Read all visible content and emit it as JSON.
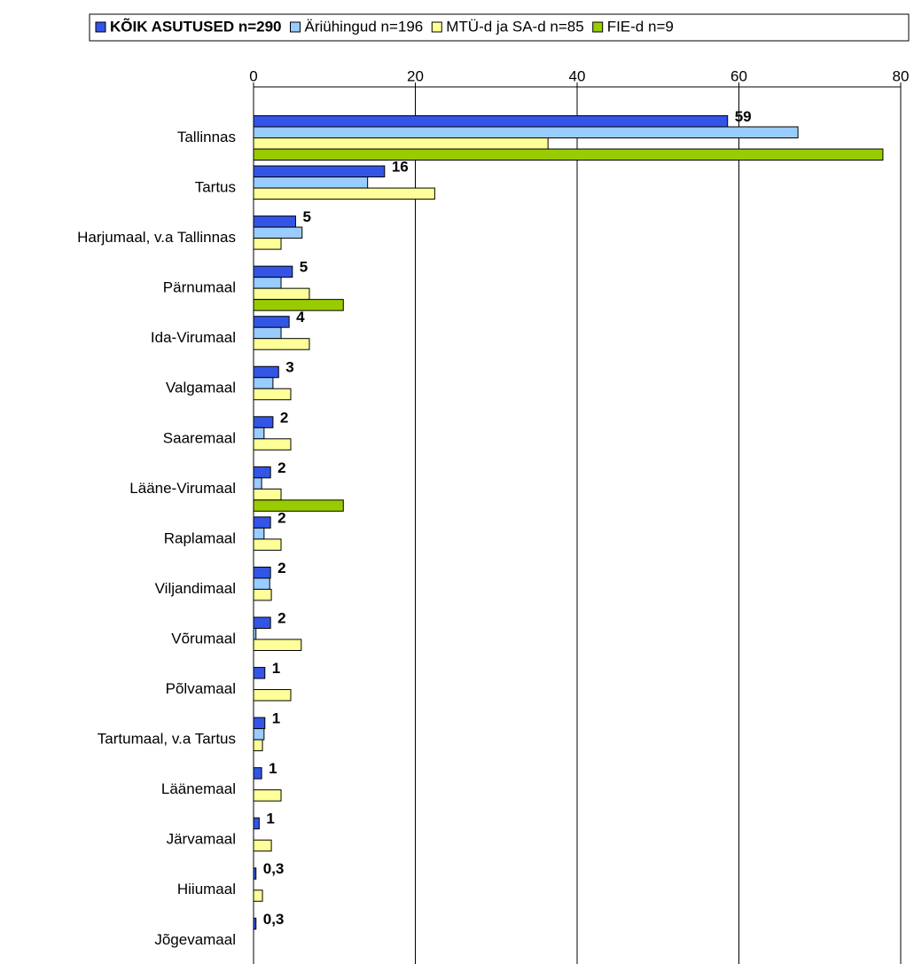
{
  "chart_data": {
    "type": "bar",
    "orientation": "horizontal",
    "categories": [
      "Tallinnas",
      "Tartus",
      "Harjumaal, v.a Tallinnas",
      "Pärnumaal",
      "Ida-Virumaal",
      "Valgamaal",
      "Saaremaal",
      "Lääne-Virumaal",
      "Raplamaal",
      "Viljandimaal",
      "Võrumaal",
      "Põlvamaal",
      "Tartumaal, v.a Tartus",
      "Läänemaal",
      "Järvamaal",
      "Hiiumaal",
      "Jõgevamaal"
    ],
    "series": [
      {
        "name": "KÕIK ASUTUSED n=290",
        "color": "#3355e6",
        "values": [
          58.6,
          16.2,
          5.2,
          4.8,
          4.4,
          3.1,
          2.4,
          2.1,
          2.1,
          2.1,
          2.1,
          1.4,
          1.4,
          1.0,
          0.7,
          0.3,
          0.3
        ],
        "value_labels": [
          "59",
          "16",
          "5",
          "5",
          "4",
          "3",
          "2",
          "2",
          "2",
          "2",
          "2",
          "1",
          "1",
          "1",
          "1",
          "0,3",
          "0,3"
        ]
      },
      {
        "name": "Äriühingud n=196",
        "color": "#99ccff",
        "values": [
          67.3,
          14.1,
          6.0,
          3.4,
          3.4,
          2.4,
          1.3,
          1.0,
          1.3,
          2.0,
          0.3,
          0,
          1.3,
          0,
          0,
          0,
          0
        ]
      },
      {
        "name": "MTÜ-d ja SA-d n=85",
        "color": "#ffff99",
        "values": [
          36.4,
          22.4,
          3.4,
          6.9,
          6.9,
          4.6,
          4.6,
          3.4,
          3.4,
          2.2,
          5.9,
          4.6,
          1.1,
          3.4,
          2.2,
          1.1,
          0
        ]
      },
      {
        "name": "FIE-d n=9",
        "color": "#99cc00",
        "values": [
          77.8,
          0,
          0,
          11.1,
          0,
          0,
          0,
          11.1,
          0,
          0,
          0,
          0,
          0,
          0,
          0,
          0,
          0
        ]
      }
    ],
    "xlim": [
      0,
      80
    ],
    "xticks": [
      0,
      20,
      40,
      60,
      80
    ],
    "grid": true,
    "legend": "top"
  }
}
